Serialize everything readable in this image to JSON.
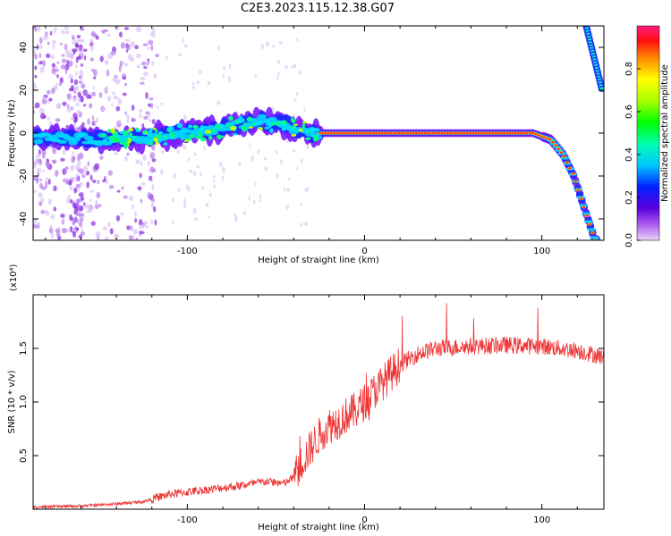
{
  "title": "C2E3.2023.115.12.38.G07",
  "chart_data": [
    {
      "type": "heatmap",
      "xlabel": "Height of straight line (km)",
      "ylabel": "Frequency (Hz)",
      "xlim": [
        -187,
        135
      ],
      "ylim": [
        -50,
        50
      ],
      "xticks": [
        -100,
        0,
        100
      ],
      "yticks": [
        -40,
        -20,
        0,
        20,
        40
      ],
      "colorbar": {
        "label": "Normalized spectral amplitude",
        "range": [
          0,
          1
        ],
        "ticks": [
          0.0,
          0.2,
          0.4,
          0.6,
          0.8
        ],
        "tick_labels": [
          "0.0",
          "0.2",
          "0.4",
          "0.6",
          "0.8"
        ]
      },
      "ridge": {
        "description_points": [
          [
            -187,
            -2
          ],
          [
            -150,
            -3
          ],
          [
            -120,
            -2
          ],
          [
            -100,
            0
          ],
          [
            -80,
            2
          ],
          [
            -60,
            6
          ],
          [
            -45,
            4
          ],
          [
            -30,
            0
          ],
          [
            -20,
            0
          ],
          [
            0,
            0
          ],
          [
            20,
            0
          ],
          [
            60,
            0
          ],
          [
            95,
            0
          ],
          [
            105,
            -3
          ],
          [
            112,
            -10
          ],
          [
            118,
            -20
          ],
          [
            122,
            -30
          ],
          [
            126,
            -40
          ],
          [
            130,
            -50
          ]
        ],
        "upper_branch": [
          [
            125,
            50
          ],
          [
            128,
            40
          ],
          [
            131,
            30
          ],
          [
            134,
            20
          ]
        ]
      }
    },
    {
      "type": "line",
      "xlabel": "Height of straight line (km)",
      "ylabel": "SNR (10 * v/v)",
      "y_multiplier": "(x10⁴)",
      "xlim": [
        -187,
        135
      ],
      "ylim": [
        0,
        2.0
      ],
      "xticks": [
        -100,
        0,
        100
      ],
      "yticks": [
        0.5,
        1.0,
        1.5
      ],
      "ytick_labels": [
        "0.5",
        "1.0",
        "1.5"
      ],
      "series": [
        {
          "color": "#ee3333",
          "x": [
            -187,
            -160,
            -140,
            -125,
            -110,
            -90,
            -70,
            -55,
            -45,
            -40,
            -35,
            -30,
            -25,
            -20,
            -15,
            -10,
            -5,
            0,
            10,
            20,
            30,
            40,
            60,
            80,
            100,
            120,
            135
          ],
          "y": [
            0.02,
            0.03,
            0.05,
            0.07,
            0.14,
            0.18,
            0.22,
            0.26,
            0.24,
            0.3,
            0.45,
            0.58,
            0.7,
            0.78,
            0.82,
            0.88,
            0.92,
            1.0,
            1.18,
            1.35,
            1.45,
            1.5,
            1.52,
            1.53,
            1.52,
            1.48,
            1.42
          ]
        }
      ]
    }
  ]
}
